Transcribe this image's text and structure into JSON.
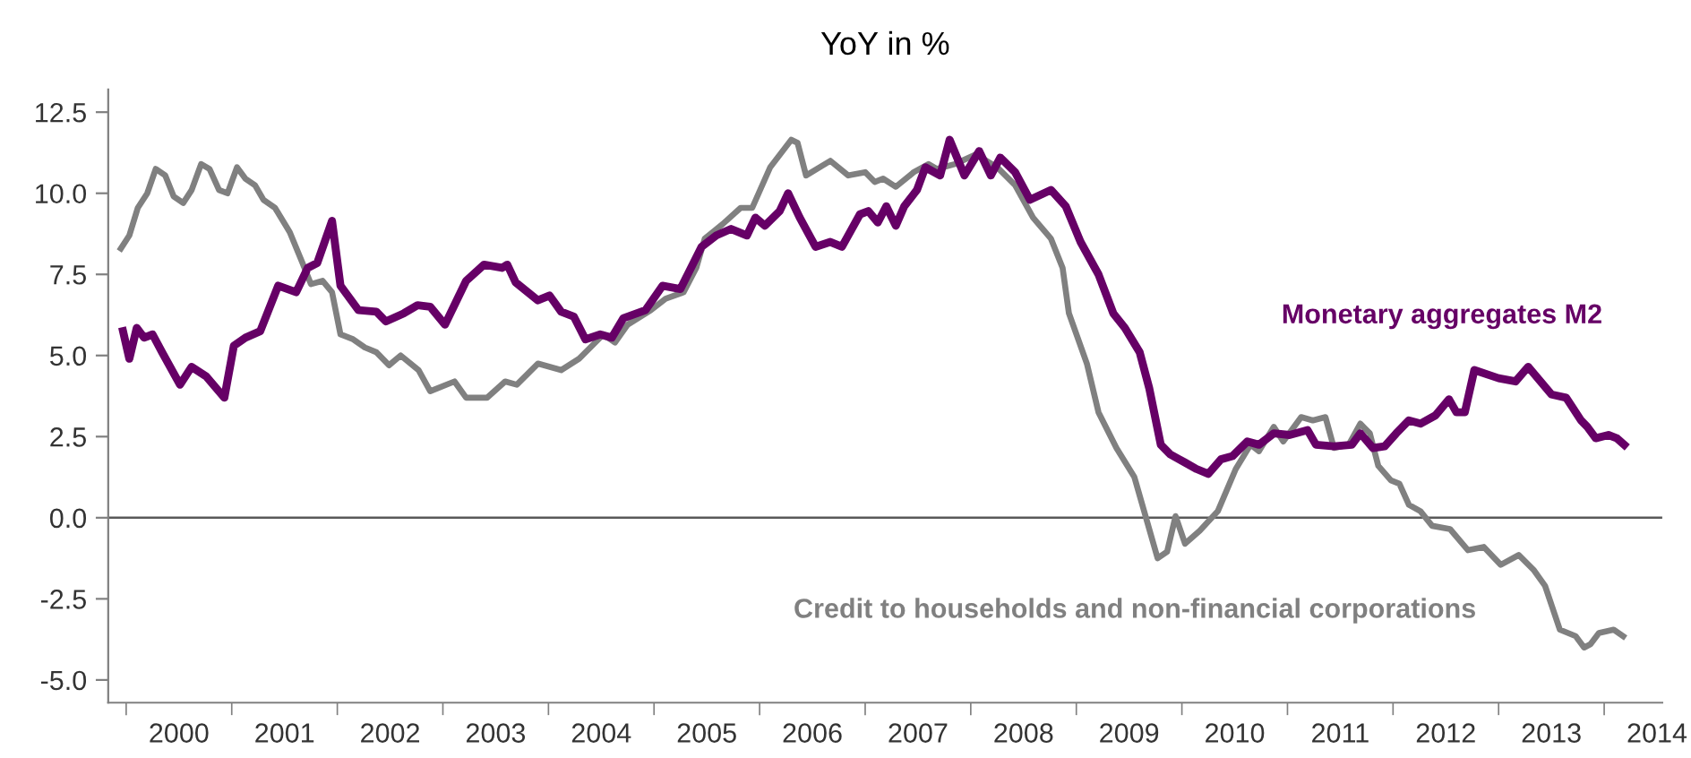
{
  "chart_data": {
    "type": "line",
    "title": "YoY in %",
    "xlim": [
      1999.83,
      2014.55
    ],
    "xticks": [
      {
        "value": 2000,
        "label": null
      },
      {
        "value": 2000.5,
        "label": "2000"
      },
      {
        "value": 2001,
        "label": null
      },
      {
        "value": 2001.5,
        "label": "2001"
      },
      {
        "value": 2002,
        "label": null
      },
      {
        "value": 2002.5,
        "label": "2002"
      },
      {
        "value": 2003,
        "label": null
      },
      {
        "value": 2003.5,
        "label": "2003"
      },
      {
        "value": 2004,
        "label": null
      },
      {
        "value": 2004.5,
        "label": "2004"
      },
      {
        "value": 2005,
        "label": null
      },
      {
        "value": 2005.5,
        "label": "2005"
      },
      {
        "value": 2006,
        "label": null
      },
      {
        "value": 2006.5,
        "label": "2006"
      },
      {
        "value": 2007,
        "label": null
      },
      {
        "value": 2007.5,
        "label": "2007"
      },
      {
        "value": 2008,
        "label": null
      },
      {
        "value": 2008.5,
        "label": "2008"
      },
      {
        "value": 2009,
        "label": null
      },
      {
        "value": 2009.5,
        "label": "2009"
      },
      {
        "value": 2010,
        "label": null
      },
      {
        "value": 2010.5,
        "label": "2010"
      },
      {
        "value": 2011,
        "label": null
      },
      {
        "value": 2011.5,
        "label": "2011"
      },
      {
        "value": 2012,
        "label": null
      },
      {
        "value": 2012.5,
        "label": "2012"
      },
      {
        "value": 2013,
        "label": null
      },
      {
        "value": 2013.5,
        "label": "2013"
      },
      {
        "value": 2014,
        "label": null
      },
      {
        "value": 2014.5,
        "label": "2014"
      }
    ],
    "ylim": [
      -5.7,
      13.2
    ],
    "yticks": [
      {
        "value": -5,
        "label": "-5.0"
      },
      {
        "value": -2.5,
        "label": "-2.5"
      },
      {
        "value": 0,
        "label": "0.0"
      },
      2.5,
      {
        "value": 5,
        "label": "5.0"
      },
      7.5,
      {
        "value": 10,
        "label": "10.0"
      },
      12.5
    ],
    "grid": false,
    "legend": false,
    "marker": "none",
    "line_style": "solid",
    "ref_lines": [
      {
        "axis": "y",
        "value": 0,
        "label": null,
        "color": "#595959"
      }
    ],
    "series": [
      {
        "name": "Monetary aggregates M2",
        "color": "#660066",
        "x": [
          1999.97,
          2000.03,
          2000.1,
          2000.17,
          2000.25,
          2000.34,
          2000.51,
          2000.62,
          2000.76,
          2000.93,
          2001.02,
          2001.13,
          2001.27,
          2001.44,
          2001.61,
          2001.72,
          2001.81,
          2001.95,
          2002.03,
          2002.2,
          2002.37,
          2002.46,
          2002.63,
          2002.76,
          2002.88,
          2003.02,
          2003.22,
          2003.39,
          2003.56,
          2003.61,
          2003.69,
          2003.9,
          2004.01,
          2004.12,
          2004.24,
          2004.35,
          2004.49,
          2004.6,
          2004.71,
          2004.92,
          2005.08,
          2005.25,
          2005.45,
          2005.59,
          2005.73,
          2005.88,
          2005.96,
          2006.05,
          2006.19,
          2006.27,
          2006.38,
          2006.53,
          2006.67,
          2006.78,
          2006.95,
          2007.03,
          2007.12,
          2007.2,
          2007.29,
          2007.37,
          2007.49,
          2007.57,
          2007.71,
          2007.8,
          2007.94,
          2008.08,
          2008.19,
          2008.28,
          2008.42,
          2008.56,
          2008.76,
          2008.9,
          2009.04,
          2009.21,
          2009.35,
          2009.46,
          2009.6,
          2009.69,
          2009.8,
          2009.89,
          2010.03,
          2010.14,
          2010.25,
          2010.37,
          2010.48,
          2010.62,
          2010.73,
          2010.87,
          2011.02,
          2011.19,
          2011.27,
          2011.44,
          2011.61,
          2011.69,
          2011.81,
          2011.92,
          2012.03,
          2012.15,
          2012.26,
          2012.4,
          2012.53,
          2012.6,
          2012.68,
          2012.77,
          2013.0,
          2013.16,
          2013.28,
          2013.5,
          2013.64,
          2013.78,
          2013.84,
          2013.92,
          2014.04,
          2014.12,
          2014.19
        ],
        "values": [
          5.75,
          4.9,
          5.85,
          5.55,
          5.65,
          5.1,
          4.1,
          4.65,
          4.35,
          3.7,
          5.3,
          5.55,
          5.75,
          7.15,
          6.95,
          7.7,
          7.85,
          9.15,
          7.15,
          6.4,
          6.35,
          6.05,
          6.3,
          6.55,
          6.5,
          5.95,
          7.3,
          7.8,
          7.7,
          7.8,
          7.25,
          6.7,
          6.85,
          6.35,
          6.2,
          5.5,
          5.65,
          5.55,
          6.15,
          6.4,
          7.15,
          7.05,
          8.35,
          8.7,
          8.9,
          8.7,
          9.25,
          9.0,
          9.45,
          10.0,
          9.25,
          8.35,
          8.5,
          8.35,
          9.35,
          9.45,
          9.1,
          9.6,
          9.0,
          9.6,
          10.1,
          10.8,
          10.55,
          11.65,
          10.55,
          11.3,
          10.55,
          11.1,
          10.65,
          9.8,
          10.1,
          9.6,
          8.5,
          7.5,
          6.3,
          5.85,
          5.1,
          4.0,
          2.25,
          1.95,
          1.7,
          1.5,
          1.35,
          1.8,
          1.9,
          2.35,
          2.25,
          2.6,
          2.55,
          2.7,
          2.25,
          2.2,
          2.25,
          2.6,
          2.15,
          2.2,
          2.6,
          3.0,
          2.9,
          3.15,
          3.65,
          3.25,
          3.25,
          4.55,
          4.3,
          4.2,
          4.65,
          3.8,
          3.7,
          3.0,
          2.8,
          2.45,
          2.55,
          2.45,
          2.25
        ]
      },
      {
        "name": "Credit to households and non-financial corporations",
        "color": "#808080",
        "x": [
          1999.95,
          2000.03,
          2000.11,
          2000.2,
          2000.28,
          2000.37,
          2000.45,
          2000.54,
          2000.62,
          2000.71,
          2000.79,
          2000.88,
          2000.96,
          2001.05,
          2001.13,
          2001.22,
          2001.3,
          2001.41,
          2001.55,
          2001.67,
          2001.75,
          2001.86,
          2001.95,
          2002.03,
          2002.15,
          2002.26,
          2002.37,
          2002.49,
          2002.6,
          2002.77,
          2002.88,
          2003.11,
          2003.22,
          2003.42,
          2003.59,
          2003.7,
          2003.9,
          2004.12,
          2004.29,
          2004.52,
          2004.63,
          2004.75,
          2004.97,
          2005.11,
          2005.28,
          2005.4,
          2005.48,
          2005.65,
          2005.82,
          2005.93,
          2006.1,
          2006.3,
          2006.36,
          2006.44,
          2006.67,
          2006.84,
          2007.0,
          2007.09,
          2007.17,
          2007.29,
          2007.46,
          2007.6,
          2007.68,
          2007.85,
          2008.05,
          2008.25,
          2008.42,
          2008.59,
          2008.76,
          2008.87,
          2008.93,
          2009.1,
          2009.21,
          2009.38,
          2009.55,
          2009.77,
          2009.86,
          2009.94,
          2010.03,
          2010.17,
          2010.34,
          2010.51,
          2010.65,
          2010.73,
          2010.87,
          2010.96,
          2011.13,
          2011.24,
          2011.36,
          2011.44,
          2011.58,
          2011.69,
          2011.78,
          2011.86,
          2011.98,
          2012.06,
          2012.15,
          2012.26,
          2012.37,
          2012.54,
          2012.71,
          2012.86,
          2013.02,
          2013.19,
          2013.33,
          2013.44,
          2013.58,
          2013.73,
          2013.81,
          2013.87,
          2013.95,
          2014.09,
          2014.18
        ],
        "values": [
          8.3,
          8.7,
          9.55,
          10.0,
          10.75,
          10.55,
          9.9,
          9.7,
          10.1,
          10.9,
          10.75,
          10.1,
          10.0,
          10.8,
          10.45,
          10.25,
          9.8,
          9.55,
          8.8,
          7.85,
          7.2,
          7.3,
          6.95,
          5.65,
          5.5,
          5.25,
          5.1,
          4.7,
          5.0,
          4.55,
          3.9,
          4.2,
          3.7,
          3.7,
          4.2,
          4.1,
          4.75,
          4.55,
          4.9,
          5.65,
          5.4,
          5.95,
          6.4,
          6.75,
          6.95,
          7.7,
          8.6,
          9.05,
          9.55,
          9.55,
          10.8,
          11.65,
          11.55,
          10.55,
          11.0,
          10.55,
          10.65,
          10.35,
          10.45,
          10.2,
          10.65,
          10.9,
          10.75,
          10.9,
          11.2,
          10.8,
          10.25,
          9.25,
          8.6,
          7.7,
          6.3,
          4.75,
          3.25,
          2.15,
          1.25,
          -1.25,
          -1.05,
          0.05,
          -0.8,
          -0.4,
          0.2,
          1.5,
          2.25,
          2.05,
          2.8,
          2.35,
          3.1,
          3.0,
          3.1,
          2.15,
          2.25,
          2.9,
          2.6,
          1.6,
          1.15,
          1.05,
          0.4,
          0.2,
          -0.25,
          -0.35,
          -1.0,
          -0.9,
          -1.45,
          -1.15,
          -1.6,
          -2.1,
          -3.45,
          -3.65,
          -4.0,
          -3.9,
          -3.55,
          -3.45,
          -3.65
        ]
      }
    ]
  }
}
